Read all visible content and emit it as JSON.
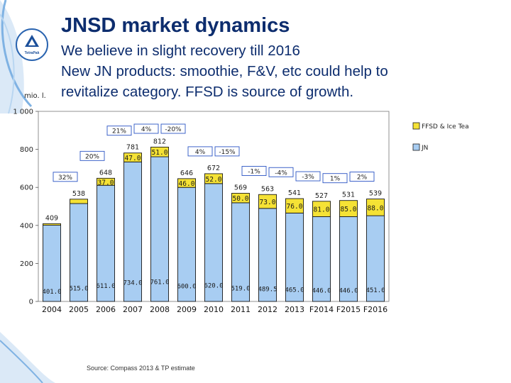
{
  "slide": {
    "title": "JNSD market dynamics",
    "subtitle_lines": [
      "We believe in slight recovery till 2016",
      "New JN products: smoothie, F&V, etc could help to",
      "revitalize category. FFSD is source of growth."
    ],
    "unit_label": "mio. l.",
    "source": "Source: Compass 2013 & TP estimate",
    "logo_text": "TetraPak"
  },
  "colors": {
    "title": "#0d2d6e",
    "jn": "#a8cdf2",
    "ffsd": "#f5e235",
    "bar_outline": "#1a1a1a",
    "callout_border": "#2b54c4"
  },
  "chart_data": {
    "type": "bar",
    "stacked": true,
    "categories": [
      "2004",
      "2005",
      "2006",
      "2007",
      "2008",
      "2009",
      "2010",
      "2011",
      "2012",
      "2013",
      "F2014",
      "F2015",
      "F2016"
    ],
    "series": [
      {
        "name": "JN",
        "values": [
          401.0,
          515.0,
          611.0,
          734.0,
          761.0,
          600.0,
          620.0,
          519.0,
          489.5,
          465.0,
          446.0,
          446.0,
          451.0
        ],
        "labels": [
          "401.0",
          "515.0",
          "611.0",
          "734.0",
          "761.0",
          "600.0",
          "620.0",
          "519.0",
          "489.5",
          "465.0",
          "446.0",
          "446.0",
          "451.0"
        ]
      },
      {
        "name": "FFSD & Ice Tea",
        "values": [
          8,
          23,
          37.0,
          47.0,
          51.0,
          46.0,
          52.0,
          50.0,
          73.0,
          76.0,
          81.0,
          85.0,
          88.0
        ],
        "labels": [
          "",
          "",
          "37.0",
          "47.0",
          "51.0",
          "46.0",
          "52.0",
          "50.0",
          "73.0",
          "76.0",
          "81.0",
          "85.0",
          "88.0"
        ]
      }
    ],
    "totals": [
      "409",
      "538",
      "648",
      "781",
      "812",
      "646",
      "672",
      "569",
      "563",
      "541",
      "527",
      "531",
      "539"
    ],
    "growth_callouts": [
      "32%",
      "20%",
      "21%",
      "4%",
      "-20%",
      "4%",
      "-15%",
      "-1%",
      "-4%",
      "-3%",
      "1%",
      "2%"
    ],
    "ylim": [
      0,
      1000
    ],
    "yticks": [
      "0",
      "200",
      "400",
      "600",
      "800",
      "1 000"
    ],
    "legend": [
      "FFSD & Ice Tea",
      "JN"
    ],
    "legend_position": "right"
  }
}
